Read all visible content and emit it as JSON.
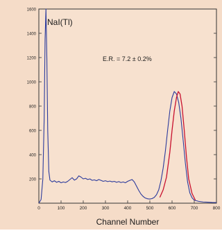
{
  "chart_data": {
    "type": "line",
    "title": "",
    "xlabel": "Channel Number",
    "ylabel": "",
    "xlim": [
      0,
      800
    ],
    "ylim": [
      0,
      1600
    ],
    "x_ticks": [
      0,
      100,
      200,
      300,
      400,
      500,
      600,
      700,
      800
    ],
    "y_ticks": [
      200,
      400,
      600,
      800,
      1000,
      1200,
      1400,
      1600
    ],
    "grid": false,
    "annotations": [
      {
        "text": "NaI(Tl)"
      },
      {
        "text": "E.R. = 7.2 ± 0.2%"
      }
    ],
    "series": [
      {
        "color": "#2b3a9c",
        "x": [
          0,
          10,
          18,
          24,
          28,
          32,
          36,
          40,
          45,
          50,
          60,
          70,
          80,
          90,
          100,
          110,
          120,
          130,
          140,
          150,
          160,
          170,
          180,
          190,
          200,
          210,
          220,
          230,
          240,
          250,
          260,
          270,
          280,
          290,
          300,
          310,
          320,
          330,
          340,
          350,
          360,
          370,
          380,
          390,
          400,
          410,
          420,
          430,
          440,
          450,
          460,
          470,
          480,
          490,
          500,
          510,
          520,
          530,
          540,
          550,
          560,
          570,
          580,
          590,
          600,
          610,
          620,
          630,
          640,
          650,
          660,
          670,
          680,
          690,
          700,
          720,
          740,
          760,
          780,
          800
        ],
        "y": [
          0,
          30,
          200,
          700,
          1350,
          1600,
          1200,
          600,
          260,
          190,
          175,
          185,
          172,
          180,
          168,
          175,
          170,
          180,
          195,
          210,
          190,
          200,
          225,
          215,
          200,
          205,
          195,
          200,
          188,
          192,
          185,
          195,
          188,
          180,
          185,
          178,
          182,
          176,
          180,
          172,
          178,
          170,
          175,
          168,
          180,
          188,
          195,
          175,
          140,
          105,
          75,
          55,
          42,
          36,
          34,
          38,
          48,
          70,
          110,
          185,
          290,
          430,
          600,
          760,
          870,
          920,
          900,
          830,
          700,
          520,
          330,
          175,
          85,
          45,
          25,
          15,
          10,
          8,
          6,
          5
        ]
      },
      {
        "color": "#c8102e",
        "x": [
          545,
          560,
          575,
          590,
          600,
          610,
          620,
          628,
          636,
          645,
          655,
          665,
          675,
          690,
          705
        ],
        "y": [
          48,
          110,
          215,
          420,
          600,
          760,
          870,
          920,
          900,
          800,
          600,
          380,
          200,
          80,
          25
        ]
      }
    ]
  }
}
